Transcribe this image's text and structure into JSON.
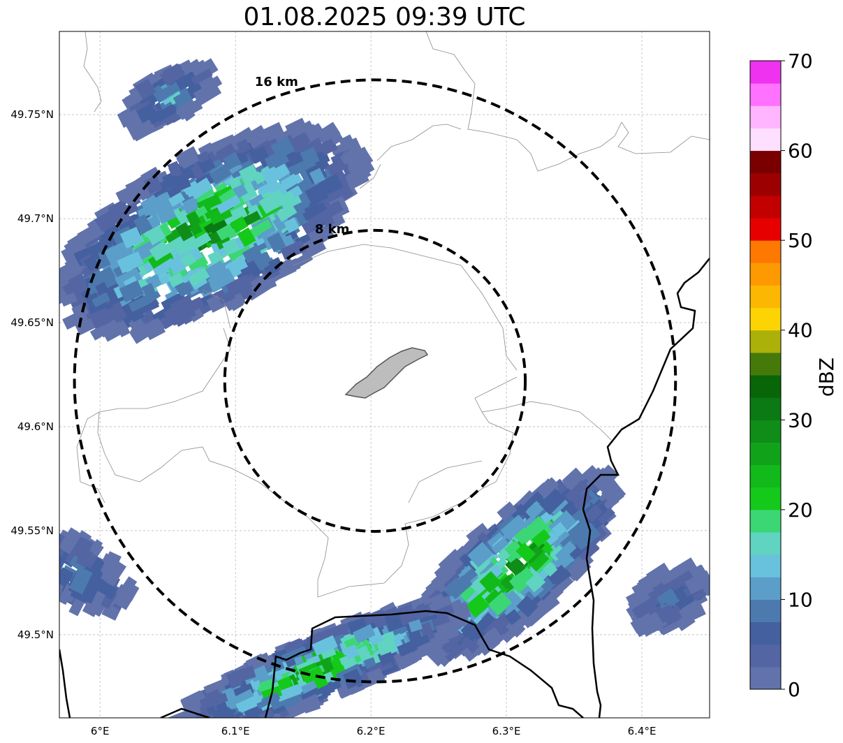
{
  "title": "01.08.2025 09:39 UTC",
  "map": {
    "lon_range": [
      5.97,
      6.45
    ],
    "lat_range": [
      49.46,
      49.79
    ],
    "lon_ticks": [
      {
        "value": 6.0,
        "label": "6°E"
      },
      {
        "value": 6.1,
        "label": "6.1°E"
      },
      {
        "value": 6.2,
        "label": "6.2°E"
      },
      {
        "value": 6.3,
        "label": "6.3°E"
      },
      {
        "value": 6.4,
        "label": "6.4°E"
      }
    ],
    "lat_ticks": [
      {
        "value": 49.75,
        "label": "49.75°N"
      },
      {
        "value": 49.7,
        "label": "49.7°N"
      },
      {
        "value": 49.65,
        "label": "49.65°N"
      },
      {
        "value": 49.6,
        "label": "49.6°N"
      },
      {
        "value": 49.55,
        "label": "49.55°N"
      },
      {
        "value": 49.5,
        "label": "49.5°N"
      }
    ],
    "grid": true,
    "center": {
      "lon": 6.203,
      "lat": 49.622
    },
    "range_rings": [
      {
        "radius_km": 8,
        "label": "8 km"
      },
      {
        "radius_km": 16,
        "label": "16 km"
      }
    ]
  },
  "colorbar": {
    "label": "dBZ",
    "min": 0,
    "max": 70,
    "ticks": [
      "0",
      "10",
      "20",
      "30",
      "40",
      "50",
      "60",
      "70"
    ],
    "colors": [
      "#6273ab",
      "#5465a4",
      "#44609f",
      "#4c7aaf",
      "#5b9ec9",
      "#69c2dd",
      "#60d3c1",
      "#3cd775",
      "#14c919",
      "#12b91a",
      "#10a31a",
      "#0f8d18",
      "#0b7914",
      "#086508",
      "#457a0b",
      "#abb109",
      "#fcd403",
      "#fcb702",
      "#fd9a02",
      "#fd7902",
      "#e70000",
      "#c20000",
      "#9d0000",
      "#7a0000",
      "#ffdfff",
      "#ffb5ff",
      "#ff71ff",
      "#ef32ef"
    ]
  },
  "echo_cells": {
    "nw": {
      "dbz_min": 0,
      "dbz_max": 33
    },
    "se": {
      "dbz_min": 0,
      "dbz_max": 33
    },
    "s": {
      "dbz_min": 0,
      "dbz_max": 18
    }
  }
}
